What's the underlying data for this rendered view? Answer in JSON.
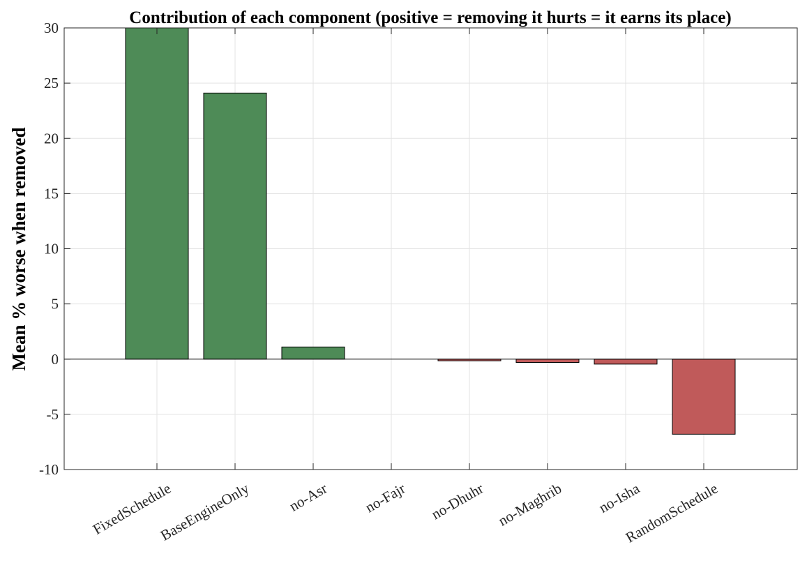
{
  "chart_data": {
    "type": "bar",
    "title": "Contribution of each component  (positive = removing it hurts = it earns its place)",
    "xlabel": "",
    "ylabel": "Mean % worse when removed",
    "categories": [
      "FixedSchedule",
      "BaseEngineOnly",
      "no-Asr",
      "no-Fajr",
      "no-Dhuhr",
      "no-Maghrib",
      "no-Isha",
      "RandomSchedule"
    ],
    "values": [
      30.0,
      24.1,
      1.1,
      0.0,
      -0.15,
      -0.3,
      -0.45,
      -6.8
    ],
    "ylim": [
      -10,
      30
    ],
    "yticks": [
      "30",
      "25",
      "20",
      "15",
      "10",
      "5",
      "0",
      "-5",
      "-10"
    ],
    "grid": true,
    "colors": {
      "positive": "#4e8b57",
      "negative": "#c05a5a",
      "zero_line": "#000000",
      "grid": "#e3e3e3"
    }
  }
}
